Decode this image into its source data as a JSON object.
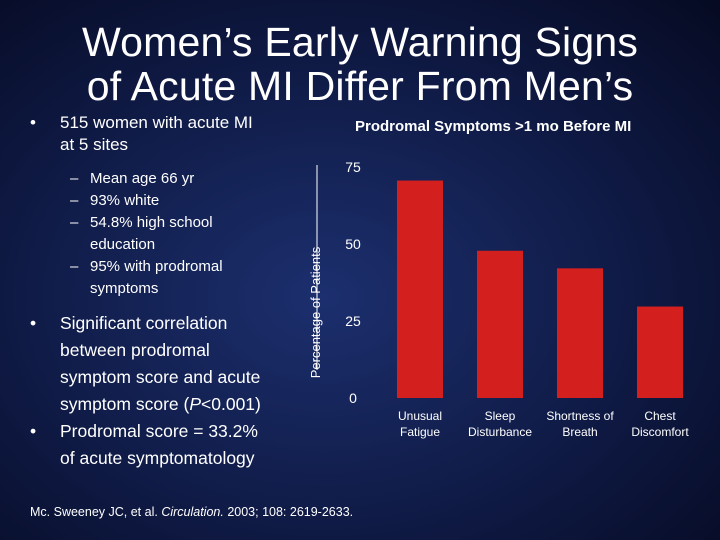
{
  "slide": {
    "title_line1": "Women’s Early Warning Signs",
    "title_line2": "of Acute MI Differ From Men’s",
    "bullet1_line1": "515 women with acute MI",
    "bullet1_line2": "at 5 sites",
    "sub_bullets": [
      {
        "dash": "–",
        "lines": [
          "Mean age 66 yr"
        ]
      },
      {
        "dash": "–",
        "lines": [
          "93% white"
        ]
      },
      {
        "dash": "–",
        "lines": [
          "54.8% high school",
          "education"
        ]
      },
      {
        "dash": "–",
        "lines": [
          "95% with prodromal",
          "symptoms"
        ]
      }
    ],
    "bullet2_lines": [
      "Significant correlation",
      "between prodromal",
      "symptom score and acute"
    ],
    "bullet2_last_pre": "symptom score (",
    "bullet2_last_italic": "P",
    "bullet2_last_post": "<0.001)",
    "bullet3_lines": [
      "Prodromal score = 33.2%",
      "of acute symptomatology"
    ],
    "reference_pre": "Mc. Sweeney JC, et al. ",
    "reference_journal": "Circulation.",
    "reference_post": " 2003; 108: 2619-2633."
  },
  "chart_data": {
    "type": "bar",
    "title": "Prodromal Symptoms >1 mo Before MI",
    "ylabel": "Percentage of Patients",
    "xlabel": "",
    "categories": [
      [
        "Unusual",
        "Fatigue"
      ],
      [
        "Sleep",
        "Disturbance"
      ],
      [
        "Shortness of",
        "Breath"
      ],
      [
        "Chest",
        "Discomfort"
      ]
    ],
    "values": [
      70.6,
      47.8,
      42.1,
      29.7
    ],
    "ylim": [
      0,
      75
    ],
    "yticks": [
      0,
      25,
      50,
      75
    ],
    "bar_color": "#d41f1f",
    "grid": false
  }
}
